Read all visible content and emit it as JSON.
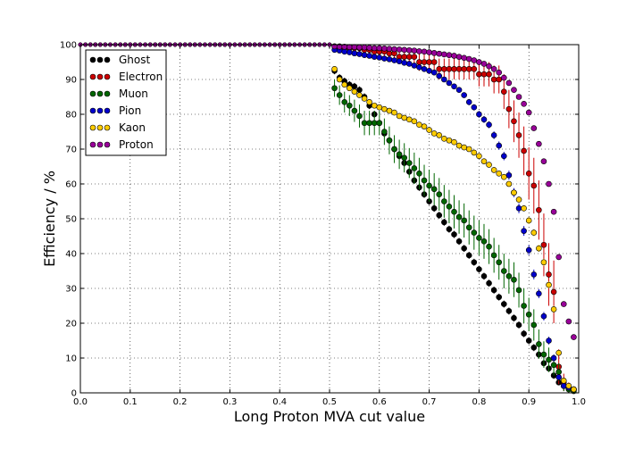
{
  "chart_data": {
    "type": "scatter",
    "title": "",
    "xlabel": "Long Proton MVA cut value",
    "ylabel": "Efficiency / %",
    "xlim": [
      0.0,
      1.0
    ],
    "ylim": [
      0,
      100
    ],
    "x_ticks": [
      "0.0",
      "0.1",
      "0.2",
      "0.3",
      "0.4",
      "0.5",
      "0.6",
      "0.7",
      "0.8",
      "0.9",
      "1.0"
    ],
    "y_ticks": [
      "0",
      "10",
      "20",
      "30",
      "40",
      "50",
      "60",
      "70",
      "80",
      "90",
      "100"
    ],
    "grid": true,
    "legend_position": "top-left",
    "series": [
      {
        "name": "Ghost",
        "color": "#000000",
        "x": [
          0.51,
          0.52,
          0.53,
          0.54,
          0.55,
          0.56,
          0.57,
          0.58,
          0.59,
          0.6,
          0.61,
          0.62,
          0.63,
          0.64,
          0.65,
          0.66,
          0.67,
          0.68,
          0.69,
          0.7,
          0.71,
          0.72,
          0.73,
          0.74,
          0.75,
          0.76,
          0.77,
          0.78,
          0.79,
          0.8,
          0.81,
          0.82,
          0.83,
          0.84,
          0.85,
          0.86,
          0.87,
          0.88,
          0.89,
          0.9,
          0.91,
          0.92,
          0.93,
          0.94,
          0.95,
          0.96,
          0.97,
          0.98,
          0.99
        ],
        "y": [
          92.5,
          90.5,
          89.5,
          88.5,
          88.0,
          87.0,
          85.0,
          82.5,
          80.0,
          77.5,
          74.5,
          72.5,
          70.0,
          68.0,
          66.0,
          63.5,
          61.0,
          59.0,
          57.0,
          55.0,
          53.0,
          51.0,
          49.0,
          47.0,
          45.5,
          43.5,
          41.5,
          39.5,
          37.5,
          35.5,
          33.5,
          31.5,
          29.5,
          27.5,
          25.5,
          23.5,
          21.5,
          19.5,
          17.0,
          15.0,
          13.0,
          11.0,
          8.5,
          7.0,
          5.0,
          3.0,
          2.0,
          1.5,
          1.0
        ],
        "err": [
          1.0,
          1.0,
          1.0,
          1.0,
          1.0,
          1.0,
          1.0,
          1.0,
          1.0,
          1.0,
          1.0,
          1.0,
          1.0,
          1.0,
          1.0,
          1.0,
          1.0,
          1.0,
          1.0,
          1.0,
          1.0,
          1.0,
          1.0,
          1.0,
          1.0,
          1.0,
          1.0,
          1.0,
          1.0,
          1.0,
          1.0,
          1.0,
          1.0,
          1.0,
          1.0,
          1.0,
          1.0,
          1.0,
          1.0,
          1.0,
          1.0,
          1.0,
          1.0,
          1.0,
          1.0,
          0.8,
          0.6,
          0.5,
          0.4
        ]
      },
      {
        "name": "Electron",
        "color": "#cc0000",
        "x": [
          0.51,
          0.52,
          0.53,
          0.54,
          0.55,
          0.56,
          0.57,
          0.58,
          0.59,
          0.6,
          0.61,
          0.62,
          0.63,
          0.64,
          0.65,
          0.66,
          0.67,
          0.68,
          0.69,
          0.7,
          0.71,
          0.72,
          0.73,
          0.74,
          0.75,
          0.76,
          0.77,
          0.78,
          0.79,
          0.8,
          0.81,
          0.82,
          0.83,
          0.84,
          0.85,
          0.86,
          0.87,
          0.88,
          0.89,
          0.9,
          0.91,
          0.92,
          0.93,
          0.94,
          0.95,
          0.96,
          0.97,
          0.98,
          0.99
        ],
        "y": [
          99.5,
          99.5,
          99.0,
          99.0,
          99.0,
          99.0,
          98.5,
          98.5,
          98.0,
          98.0,
          98.0,
          97.5,
          97.5,
          96.5,
          96.5,
          96.5,
          96.5,
          95.0,
          95.0,
          95.0,
          95.0,
          93.0,
          93.0,
          93.0,
          93.0,
          93.0,
          93.0,
          93.0,
          93.0,
          91.5,
          91.5,
          91.5,
          90.0,
          90.0,
          86.5,
          81.5,
          78.0,
          74.0,
          69.5,
          63.0,
          59.5,
          52.5,
          42.5,
          34.0,
          29.0,
          7.5,
          3.0,
          1.5,
          0.8
        ],
        "err": [
          0.8,
          0.8,
          1.0,
          1.0,
          1.0,
          1.0,
          1.2,
          1.2,
          1.3,
          1.3,
          1.3,
          1.5,
          1.5,
          2.0,
          2.0,
          2.0,
          2.0,
          2.5,
          2.5,
          2.5,
          2.5,
          3.0,
          3.0,
          3.0,
          3.0,
          3.0,
          3.0,
          3.0,
          3.0,
          3.5,
          3.5,
          3.5,
          4.0,
          4.0,
          5.0,
          5.5,
          6.0,
          6.5,
          7.0,
          7.5,
          8.0,
          8.5,
          9.0,
          9.0,
          9.0,
          5.0,
          2.5,
          1.5,
          1.0
        ]
      },
      {
        "name": "Muon",
        "color": "#006600",
        "x": [
          0.51,
          0.52,
          0.53,
          0.54,
          0.55,
          0.56,
          0.57,
          0.58,
          0.59,
          0.6,
          0.61,
          0.62,
          0.63,
          0.64,
          0.65,
          0.66,
          0.67,
          0.68,
          0.69,
          0.7,
          0.71,
          0.72,
          0.73,
          0.74,
          0.75,
          0.76,
          0.77,
          0.78,
          0.79,
          0.8,
          0.81,
          0.82,
          0.83,
          0.84,
          0.85,
          0.86,
          0.87,
          0.88,
          0.89,
          0.9,
          0.91,
          0.92,
          0.93,
          0.94,
          0.95,
          0.96,
          0.97,
          0.98,
          0.99
        ],
        "y": [
          87.5,
          85.5,
          83.5,
          82.5,
          81.0,
          79.5,
          77.5,
          77.5,
          77.5,
          77.5,
          75.0,
          72.5,
          70.0,
          68.5,
          67.5,
          66.0,
          64.5,
          63.0,
          61.0,
          59.5,
          58.5,
          57.0,
          55.0,
          53.5,
          52.0,
          50.5,
          49.5,
          47.5,
          46.0,
          44.5,
          43.5,
          42.0,
          39.5,
          37.5,
          35.0,
          33.5,
          32.5,
          29.5,
          25.0,
          22.5,
          19.5,
          14.0,
          11.0,
          9.5,
          8.0,
          6.0,
          2.0,
          1.0,
          0.5
        ],
        "err": [
          2.5,
          2.8,
          3.0,
          3.0,
          3.2,
          3.3,
          3.5,
          3.5,
          3.5,
          3.5,
          3.8,
          4.0,
          4.0,
          4.2,
          4.2,
          4.3,
          4.5,
          4.5,
          4.5,
          4.6,
          4.6,
          4.7,
          4.7,
          4.8,
          4.8,
          4.8,
          4.9,
          4.9,
          4.9,
          5.0,
          5.0,
          5.0,
          5.0,
          5.0,
          5.0,
          5.0,
          5.0,
          5.0,
          5.0,
          4.8,
          4.5,
          4.2,
          3.8,
          3.5,
          3.0,
          2.5,
          1.5,
          1.0,
          0.6
        ]
      },
      {
        "name": "Pion",
        "color": "#0000cc",
        "x": [
          0.51,
          0.52,
          0.53,
          0.54,
          0.55,
          0.56,
          0.57,
          0.58,
          0.59,
          0.6,
          0.61,
          0.62,
          0.63,
          0.64,
          0.65,
          0.66,
          0.67,
          0.68,
          0.69,
          0.7,
          0.71,
          0.72,
          0.73,
          0.74,
          0.75,
          0.76,
          0.77,
          0.78,
          0.79,
          0.8,
          0.81,
          0.82,
          0.83,
          0.84,
          0.85,
          0.86,
          0.87,
          0.88,
          0.89,
          0.9,
          0.91,
          0.92,
          0.93,
          0.94,
          0.95,
          0.96,
          0.97,
          0.98,
          0.99
        ],
        "y": [
          98.5,
          98.3,
          98.0,
          97.8,
          97.5,
          97.3,
          97.0,
          96.8,
          96.5,
          96.3,
          96.0,
          95.8,
          95.5,
          95.2,
          94.8,
          94.5,
          94.0,
          93.5,
          93.0,
          92.5,
          92.0,
          91.0,
          90.0,
          89.0,
          88.0,
          87.0,
          85.5,
          83.5,
          82.0,
          80.0,
          78.5,
          77.0,
          74.0,
          71.0,
          68.0,
          62.5,
          57.5,
          53.0,
          46.5,
          41.0,
          34.0,
          28.5,
          22.0,
          15.0,
          10.0,
          4.5,
          2.0,
          1.5,
          1.0
        ],
        "err": [
          0.4,
          0.4,
          0.4,
          0.4,
          0.4,
          0.4,
          0.4,
          0.4,
          0.5,
          0.5,
          0.5,
          0.5,
          0.5,
          0.5,
          0.5,
          0.5,
          0.5,
          0.6,
          0.6,
          0.6,
          0.6,
          0.6,
          0.7,
          0.7,
          0.7,
          0.8,
          0.8,
          0.9,
          0.9,
          1.0,
          1.0,
          1.0,
          1.1,
          1.2,
          1.2,
          1.3,
          1.3,
          1.4,
          1.4,
          1.4,
          1.4,
          1.3,
          1.2,
          1.1,
          1.0,
          0.8,
          0.6,
          0.5,
          0.4
        ]
      },
      {
        "name": "Kaon",
        "color": "#ffcc00",
        "x": [
          0.51,
          0.52,
          0.53,
          0.54,
          0.55,
          0.56,
          0.57,
          0.58,
          0.59,
          0.6,
          0.61,
          0.62,
          0.63,
          0.64,
          0.65,
          0.66,
          0.67,
          0.68,
          0.69,
          0.7,
          0.71,
          0.72,
          0.73,
          0.74,
          0.75,
          0.76,
          0.77,
          0.78,
          0.79,
          0.8,
          0.81,
          0.82,
          0.83,
          0.84,
          0.85,
          0.86,
          0.87,
          0.88,
          0.89,
          0.9,
          0.91,
          0.92,
          0.93,
          0.94,
          0.95,
          0.96,
          0.97,
          0.98,
          0.99
        ],
        "y": [
          93.0,
          90.0,
          88.5,
          87.5,
          86.5,
          85.5,
          84.5,
          83.5,
          82.5,
          82.0,
          81.5,
          81.0,
          80.5,
          79.5,
          79.0,
          78.5,
          78.0,
          77.0,
          76.5,
          75.5,
          74.5,
          74.0,
          73.0,
          72.5,
          72.0,
          71.0,
          70.5,
          70.0,
          69.0,
          68.0,
          66.5,
          65.5,
          64.0,
          63.0,
          62.0,
          60.0,
          57.5,
          55.5,
          53.0,
          49.5,
          46.0,
          41.5,
          37.5,
          31.0,
          24.0,
          11.5,
          3.5,
          2.0,
          1.0
        ],
        "err": [
          0.6,
          0.6,
          0.6,
          0.6,
          0.6,
          0.6,
          0.6,
          0.6,
          0.6,
          0.6,
          0.6,
          0.6,
          0.6,
          0.6,
          0.6,
          0.6,
          0.6,
          0.6,
          0.6,
          0.6,
          0.6,
          0.6,
          0.6,
          0.6,
          0.6,
          0.6,
          0.6,
          0.6,
          0.7,
          0.7,
          0.7,
          0.7,
          0.7,
          0.7,
          0.8,
          0.8,
          0.8,
          0.9,
          0.9,
          1.0,
          1.0,
          1.0,
          1.0,
          1.0,
          1.0,
          0.8,
          0.6,
          0.5,
          0.4
        ]
      },
      {
        "name": "Proton",
        "color": "#990099",
        "x": [
          0.51,
          0.52,
          0.53,
          0.54,
          0.55,
          0.56,
          0.57,
          0.58,
          0.59,
          0.6,
          0.61,
          0.62,
          0.63,
          0.64,
          0.65,
          0.66,
          0.67,
          0.68,
          0.69,
          0.7,
          0.71,
          0.72,
          0.73,
          0.74,
          0.75,
          0.76,
          0.77,
          0.78,
          0.79,
          0.8,
          0.81,
          0.82,
          0.83,
          0.84,
          0.85,
          0.86,
          0.87,
          0.88,
          0.89,
          0.9,
          0.91,
          0.92,
          0.93,
          0.94,
          0.95,
          0.96,
          0.97,
          0.98,
          0.99
        ],
        "y": [
          99.5,
          99.4,
          99.4,
          99.3,
          99.3,
          99.2,
          99.2,
          99.1,
          99.0,
          99.0,
          98.9,
          98.8,
          98.7,
          98.6,
          98.5,
          98.4,
          98.3,
          98.1,
          98.0,
          97.8,
          97.6,
          97.4,
          97.2,
          97.0,
          96.8,
          96.5,
          96.2,
          95.9,
          95.5,
          95.0,
          94.5,
          93.8,
          93.0,
          92.0,
          90.5,
          89.0,
          87.0,
          85.0,
          83.0,
          80.5,
          76.0,
          71.5,
          66.5,
          60.0,
          52.0,
          39.0,
          25.5,
          20.5,
          16.0
        ],
        "err": [
          0.3,
          0.3,
          0.3,
          0.3,
          0.3,
          0.3,
          0.3,
          0.3,
          0.3,
          0.3,
          0.3,
          0.3,
          0.3,
          0.3,
          0.3,
          0.3,
          0.3,
          0.3,
          0.3,
          0.3,
          0.3,
          0.3,
          0.3,
          0.3,
          0.3,
          0.3,
          0.3,
          0.3,
          0.4,
          0.4,
          0.4,
          0.4,
          0.4,
          0.4,
          0.5,
          0.5,
          0.5,
          0.5,
          0.5,
          0.6,
          0.6,
          0.7,
          0.8,
          0.8,
          0.8,
          0.8,
          0.7,
          0.6,
          0.5
        ]
      }
    ]
  }
}
